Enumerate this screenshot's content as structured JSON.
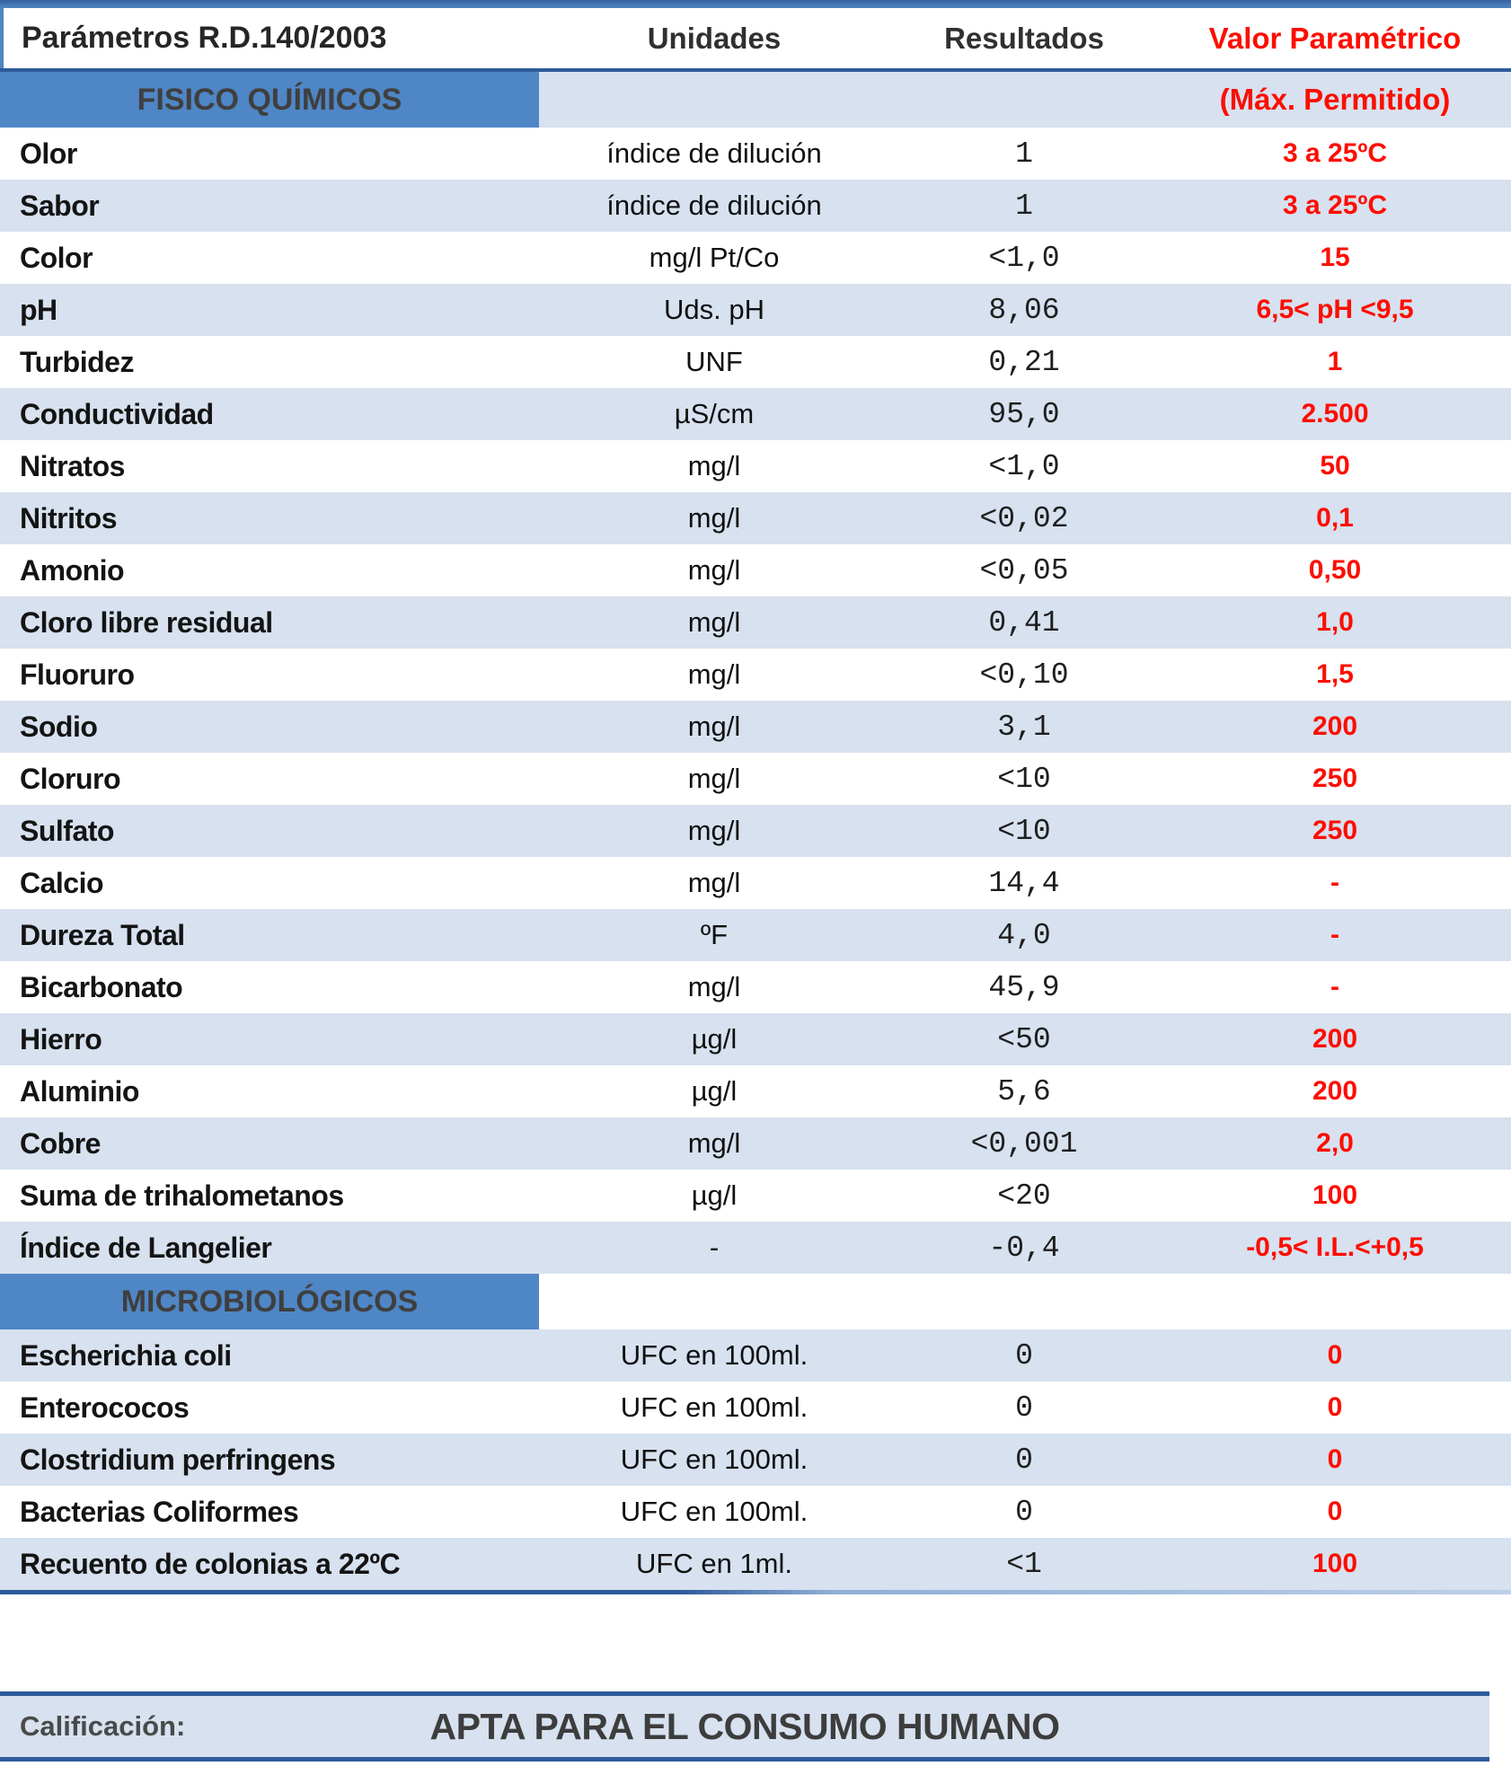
{
  "colors": {
    "accent-blue": "#4f86c5",
    "row-blue": "#d7e1ef",
    "line-blue": "#2e5b9b",
    "limit-red": "#fd0d00"
  },
  "table": {
    "columns": [
      "Parámetros R.D.140/2003",
      "Unidades",
      "Resultados",
      "Valor Paramétrico"
    ],
    "sections": [
      {
        "label": "FISICO QUÍMICOS",
        "note": "(Máx. Permitido)",
        "rows": [
          [
            "Olor",
            "índice de dilución",
            "1",
            "3 a 25ºC"
          ],
          [
            "Sabor",
            "índice de dilución",
            "1",
            "3 a 25ºC"
          ],
          [
            "Color",
            "mg/l Pt/Co",
            "<1,0",
            "15"
          ],
          [
            "pH",
            "Uds. pH",
            "8,06",
            "6,5< pH <9,5"
          ],
          [
            "Turbidez",
            "UNF",
            "0,21",
            "1"
          ],
          [
            "Conductividad",
            "µS/cm",
            "95,0",
            "2.500"
          ],
          [
            "Nitratos",
            "mg/l",
            "<1,0",
            "50"
          ],
          [
            "Nitritos",
            "mg/l",
            "<0,02",
            "0,1"
          ],
          [
            "Amonio",
            "mg/l",
            "<0,05",
            "0,50"
          ],
          [
            "Cloro libre residual",
            "mg/l",
            "0,41",
            "1,0"
          ],
          [
            "Fluoruro",
            "mg/l",
            "<0,10",
            "1,5"
          ],
          [
            "Sodio",
            "mg/l",
            "3,1",
            "200"
          ],
          [
            "Cloruro",
            "mg/l",
            "<10",
            "250"
          ],
          [
            "Sulfato",
            "mg/l",
            "<10",
            "250"
          ],
          [
            "Calcio",
            "mg/l",
            "14,4",
            "-"
          ],
          [
            "Dureza Total",
            "ºF",
            "4,0",
            "-"
          ],
          [
            "Bicarbonato",
            "mg/l",
            "45,9",
            "-"
          ],
          [
            "Hierro",
            "µg/l",
            "<50",
            "200"
          ],
          [
            "Aluminio",
            "µg/l",
            "5,6",
            "200"
          ],
          [
            "Cobre",
            "mg/l",
            "<0,001",
            "2,0"
          ],
          [
            "Suma de trihalometanos",
            "µg/l",
            "<20",
            "100"
          ],
          [
            "Índice de Langelier",
            "-",
            "-0,4",
            "-0,5< I.L.<+0,5"
          ]
        ]
      },
      {
        "label": "MICROBIOLÓGICOS",
        "note": "",
        "rows": [
          [
            "Escherichia coli",
            "UFC en 100ml.",
            "0",
            "0"
          ],
          [
            "Enterococos",
            "UFC en 100ml.",
            "0",
            "0"
          ],
          [
            "Clostridium perfringens",
            "UFC en 100ml.",
            "0",
            "0"
          ],
          [
            "Bacterias Coliformes",
            "UFC en 100ml.",
            "0",
            "0"
          ],
          [
            "Recuento de colonias a 22ºC",
            "UFC en 1ml.",
            "<1",
            "100"
          ]
        ]
      }
    ]
  },
  "footer": {
    "label": "Calificación:",
    "value": "APTA PARA EL CONSUMO HUMANO"
  }
}
